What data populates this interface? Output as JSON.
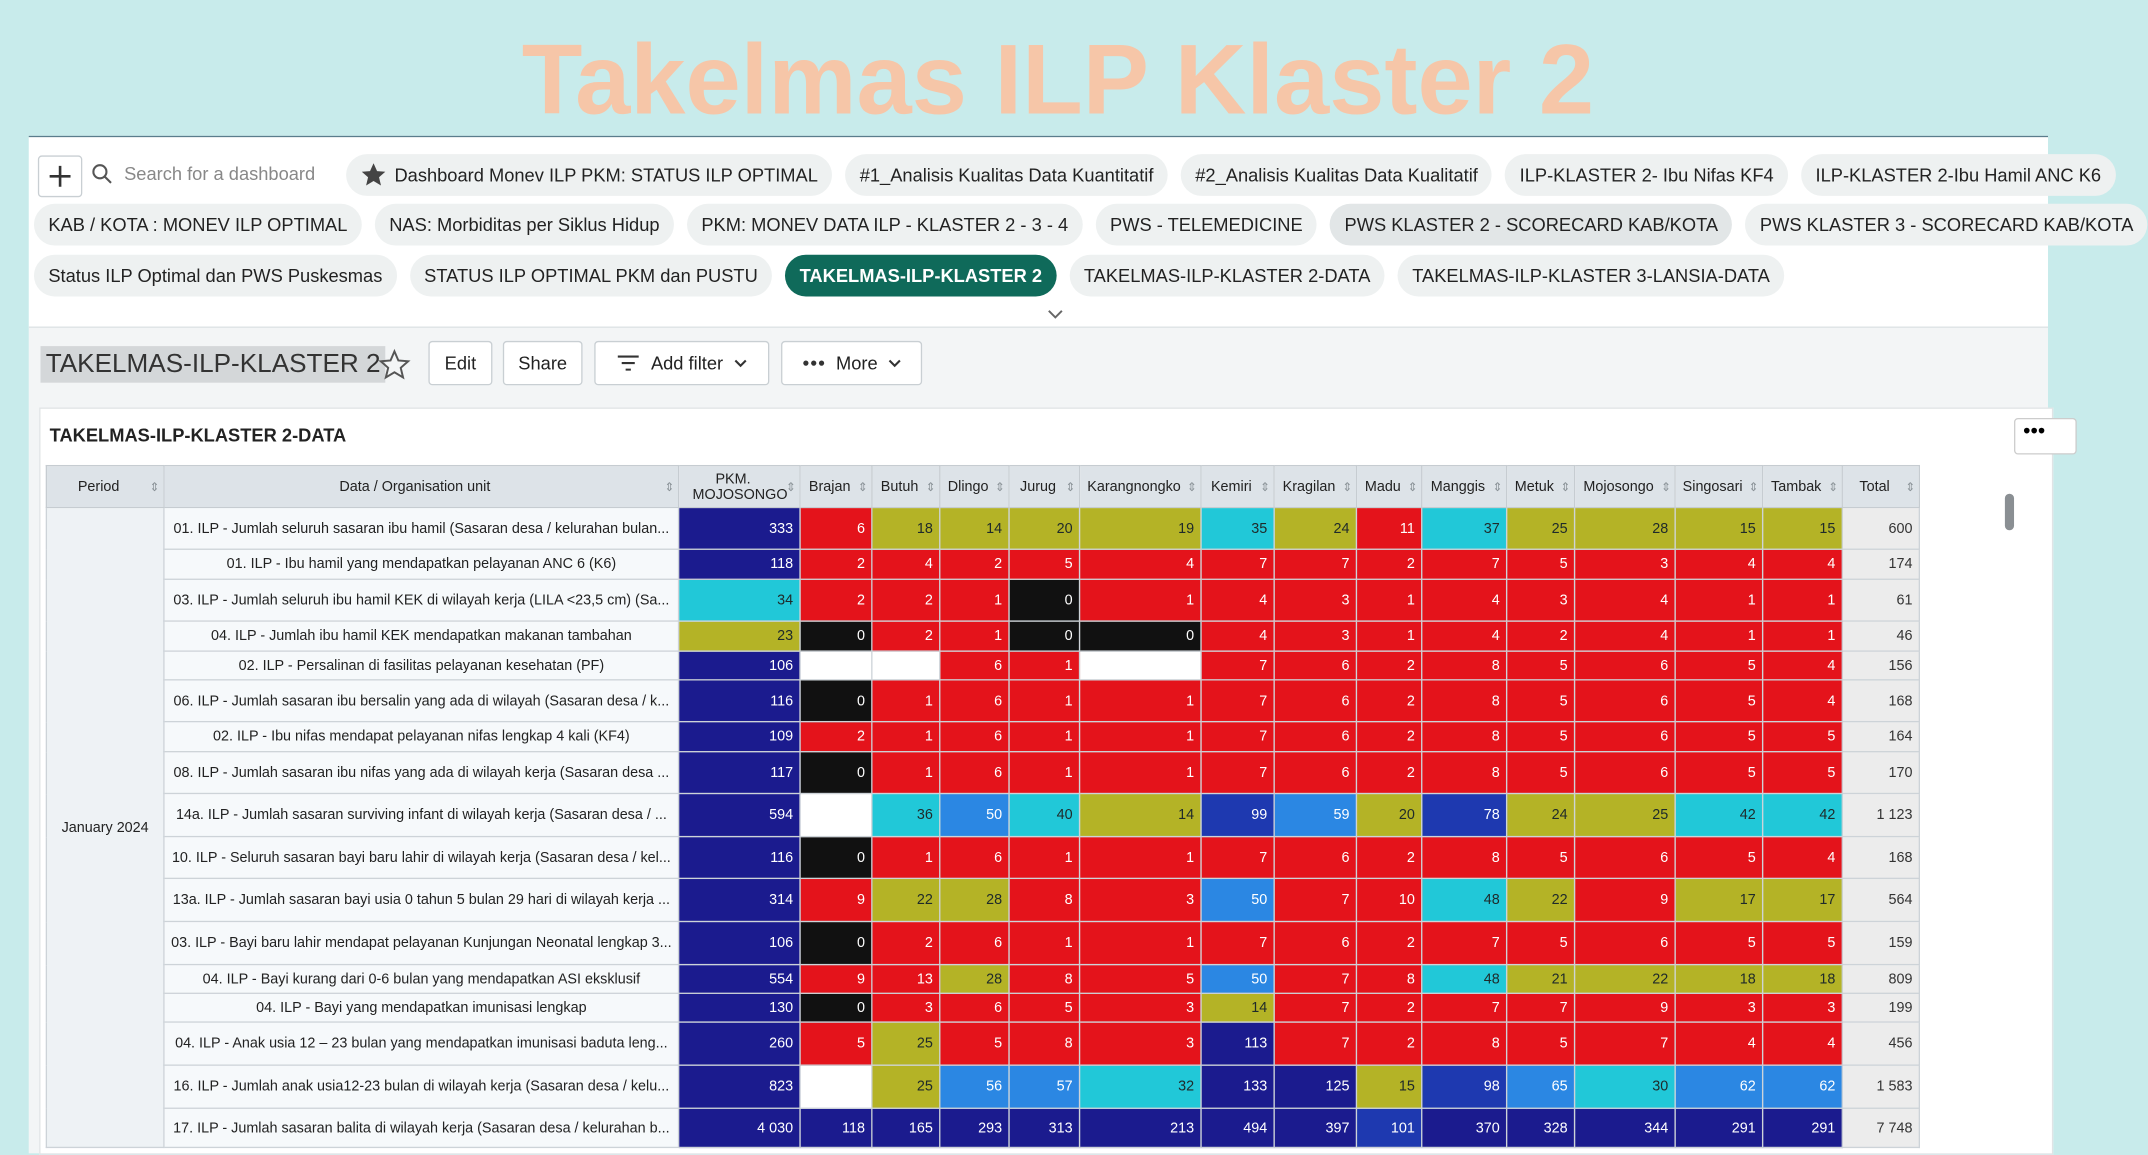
{
  "header": {
    "title": "Takelmas ILP Klaster 2"
  },
  "nav": {
    "search_placeholder": "Search for a dashboard",
    "dashboard_rows": [
      [
        {
          "label": "Dashboard Monev ILP PKM: STATUS ILP OPTIMAL",
          "starred": true
        },
        {
          "label": "#1_Analisis Kualitas Data Kuantitatif"
        },
        {
          "label": "#2_Analisis Kualitas Data Kualitatif"
        },
        {
          "label": "ILP-KLASTER 2- Ibu Nifas KF4"
        },
        {
          "label": "ILP-KLASTER 2-Ibu Hamil ANC K6"
        }
      ],
      [
        {
          "label": "KAB / KOTA : MONEV ILP OPTIMAL"
        },
        {
          "label": "NAS: Morbiditas per Siklus Hidup"
        },
        {
          "label": "PKM: MONEV DATA ILP - KLASTER 2 - 3 - 4"
        },
        {
          "label": "PWS - TELEMEDICINE"
        },
        {
          "label": "PWS KLASTER 2 - SCORECARD KAB/KOTA",
          "hovered": true
        },
        {
          "label": "PWS KLASTER 3 - SCORECARD KAB/KOTA"
        }
      ],
      [
        {
          "label": "Status ILP Optimal dan PWS Puskesmas"
        },
        {
          "label": "STATUS ILP OPTIMAL PKM dan PUSTU"
        },
        {
          "label": "TAKELMAS-ILP-KLASTER 2",
          "active": true
        },
        {
          "label": "TAKELMAS-ILP-KLASTER 2-DATA"
        },
        {
          "label": "TAKELMAS-ILP-KLASTER 3-LANSIA-DATA"
        }
      ]
    ]
  },
  "toolbar": {
    "title": "TAKELMAS-ILP-KLASTER 2",
    "buttons": [
      "Edit",
      "Share",
      "Add filter",
      "More"
    ]
  },
  "table": {
    "title": "TAKELMAS-ILP-KLASTER 2-DATA",
    "columns": [
      "Period",
      "Data / Organisation unit",
      "PKM. MOJOSONGO",
      "Brajan",
      "Butuh",
      "Dlingo",
      "Jurug",
      "Karangnongko",
      "Kemiri",
      "Kragilan",
      "Madu",
      "Manggis",
      "Metuk",
      "Mojosongo",
      "Singosari",
      "Tambak",
      "Total"
    ],
    "period": "January 2024",
    "rows": [
      {
        "label": "01. ILP - Jumlah seluruh sasaran ibu hamil (Sasaran desa / kelurahan bulan...",
        "cells": [
          333,
          6,
          18,
          14,
          20,
          19,
          35,
          24,
          11,
          37,
          25,
          28,
          15,
          15,
          600
        ],
        "colors": [
          "#1b1b8e",
          "#e4131b",
          "#b4b326",
          "#b4b326",
          "#b4b326",
          "#b4b326",
          "#21c8d8",
          "#b4b326",
          "#e4131b",
          "#21c8d8",
          "#b4b326",
          "#b4b326",
          "#b4b326",
          "#b4b326"
        ]
      },
      {
        "label": "01. ILP - Ibu hamil yang mendapatkan pelayanan ANC 6 (K6)",
        "cells": [
          118,
          2,
          4,
          2,
          5,
          4,
          7,
          7,
          2,
          7,
          5,
          3,
          4,
          4,
          174
        ],
        "colors": [
          "#1b1b8e",
          "#e4131b",
          "#e4131b",
          "#e4131b",
          "#e4131b",
          "#e4131b",
          "#e4131b",
          "#e4131b",
          "#e4131b",
          "#e4131b",
          "#e4131b",
          "#e4131b",
          "#e4131b",
          "#e4131b"
        ]
      },
      {
        "label": "03. ILP - Jumlah seluruh ibu hamil KEK di wilayah kerja (LILA <23,5 cm) (Sa...",
        "cells": [
          34,
          2,
          2,
          1,
          0,
          1,
          4,
          3,
          1,
          4,
          3,
          4,
          1,
          1,
          61
        ],
        "colors": [
          "#21c8d8",
          "#e4131b",
          "#e4131b",
          "#e4131b",
          "#111111",
          "#e4131b",
          "#e4131b",
          "#e4131b",
          "#e4131b",
          "#e4131b",
          "#e4131b",
          "#e4131b",
          "#e4131b",
          "#e4131b"
        ]
      },
      {
        "label": "04. ILP - Jumlah ibu hamil KEK mendapatkan makanan tambahan",
        "cells": [
          23,
          0,
          2,
          1,
          0,
          0,
          4,
          3,
          1,
          4,
          2,
          4,
          1,
          1,
          46
        ],
        "colors": [
          "#b4b326",
          "#111111",
          "#e4131b",
          "#e4131b",
          "#111111",
          "#111111",
          "#e4131b",
          "#e4131b",
          "#e4131b",
          "#e4131b",
          "#e4131b",
          "#e4131b",
          "#e4131b",
          "#e4131b"
        ]
      },
      {
        "label": "02. ILP - Persalinan di fasilitas pelayanan kesehatan (PF)",
        "cells": [
          106,
          null,
          null,
          6,
          1,
          null,
          7,
          6,
          2,
          8,
          5,
          6,
          5,
          4,
          156
        ],
        "colors": [
          "#1b1b8e",
          "#ffffff",
          "#ffffff",
          "#e4131b",
          "#e4131b",
          "#ffffff",
          "#e4131b",
          "#e4131b",
          "#e4131b",
          "#e4131b",
          "#e4131b",
          "#e4131b",
          "#e4131b",
          "#e4131b"
        ]
      },
      {
        "label": "06. ILP - Jumlah sasaran ibu bersalin yang ada di wilayah (Sasaran desa / k...",
        "cells": [
          116,
          0,
          1,
          6,
          1,
          1,
          7,
          6,
          2,
          8,
          5,
          6,
          5,
          4,
          168
        ],
        "colors": [
          "#1b1b8e",
          "#111111",
          "#e4131b",
          "#e4131b",
          "#e4131b",
          "#e4131b",
          "#e4131b",
          "#e4131b",
          "#e4131b",
          "#e4131b",
          "#e4131b",
          "#e4131b",
          "#e4131b",
          "#e4131b"
        ]
      },
      {
        "label": "02. ILP - Ibu nifas mendapat pelayanan nifas lengkap 4 kali (KF4)",
        "cells": [
          109,
          2,
          1,
          6,
          1,
          1,
          7,
          6,
          2,
          8,
          5,
          6,
          5,
          5,
          164
        ],
        "colors": [
          "#1b1b8e",
          "#e4131b",
          "#e4131b",
          "#e4131b",
          "#e4131b",
          "#e4131b",
          "#e4131b",
          "#e4131b",
          "#e4131b",
          "#e4131b",
          "#e4131b",
          "#e4131b",
          "#e4131b",
          "#e4131b"
        ]
      },
      {
        "label": "08. ILP - Jumlah sasaran ibu nifas yang ada di wilayah kerja (Sasaran desa ...",
        "cells": [
          117,
          0,
          1,
          6,
          1,
          1,
          7,
          6,
          2,
          8,
          5,
          6,
          5,
          5,
          170
        ],
        "colors": [
          "#1b1b8e",
          "#111111",
          "#e4131b",
          "#e4131b",
          "#e4131b",
          "#e4131b",
          "#e4131b",
          "#e4131b",
          "#e4131b",
          "#e4131b",
          "#e4131b",
          "#e4131b",
          "#e4131b",
          "#e4131b"
        ]
      },
      {
        "label": "14a. ILP - Jumlah sasaran surviving infant di wilayah kerja (Sasaran desa / ...",
        "cells": [
          594,
          null,
          36,
          50,
          40,
          14,
          99,
          59,
          20,
          78,
          24,
          25,
          42,
          42,
          "1 123"
        ],
        "colors": [
          "#1b1b8e",
          "#ffffff",
          "#21c8d8",
          "#2b87e3",
          "#21c8d8",
          "#b4b326",
          "#1e39b0",
          "#2b87e3",
          "#b4b326",
          "#1e39b0",
          "#b4b326",
          "#b4b326",
          "#21c8d8",
          "#21c8d8"
        ]
      },
      {
        "label": "10. ILP - Seluruh sasaran bayi baru lahir di wilayah kerja (Sasaran desa / kel...",
        "cells": [
          116,
          0,
          1,
          6,
          1,
          1,
          7,
          6,
          2,
          8,
          5,
          6,
          5,
          4,
          168
        ],
        "colors": [
          "#1b1b8e",
          "#111111",
          "#e4131b",
          "#e4131b",
          "#e4131b",
          "#e4131b",
          "#e4131b",
          "#e4131b",
          "#e4131b",
          "#e4131b",
          "#e4131b",
          "#e4131b",
          "#e4131b",
          "#e4131b"
        ]
      },
      {
        "label": "13a. ILP - Jumlah sasaran bayi usia 0 tahun 5 bulan 29 hari di wilayah kerja ...",
        "cells": [
          314,
          9,
          22,
          28,
          8,
          3,
          50,
          7,
          10,
          48,
          22,
          9,
          17,
          17,
          564
        ],
        "colors": [
          "#1b1b8e",
          "#e4131b",
          "#b4b326",
          "#b4b326",
          "#e4131b",
          "#e4131b",
          "#2b87e3",
          "#e4131b",
          "#e4131b",
          "#21c8d8",
          "#b4b326",
          "#e4131b",
          "#b4b326",
          "#b4b326"
        ]
      },
      {
        "label": "03. ILP - Bayi baru lahir mendapat pelayanan Kunjungan Neonatal lengkap 3...",
        "cells": [
          106,
          0,
          2,
          6,
          1,
          1,
          7,
          6,
          2,
          7,
          5,
          6,
          5,
          5,
          159
        ],
        "colors": [
          "#1b1b8e",
          "#111111",
          "#e4131b",
          "#e4131b",
          "#e4131b",
          "#e4131b",
          "#e4131b",
          "#e4131b",
          "#e4131b",
          "#e4131b",
          "#e4131b",
          "#e4131b",
          "#e4131b",
          "#e4131b"
        ]
      },
      {
        "label": "04. ILP - Bayi kurang dari 0-6 bulan yang mendapatkan ASI eksklusif",
        "cells": [
          554,
          9,
          13,
          28,
          8,
          5,
          50,
          7,
          8,
          48,
          21,
          22,
          18,
          18,
          809
        ],
        "colors": [
          "#1b1b8e",
          "#e4131b",
          "#e4131b",
          "#b4b326",
          "#e4131b",
          "#e4131b",
          "#2b87e3",
          "#e4131b",
          "#e4131b",
          "#21c8d8",
          "#b4b326",
          "#b4b326",
          "#b4b326",
          "#b4b326"
        ]
      },
      {
        "label": "04. ILP - Bayi yang mendapatkan imunisasi lengkap",
        "cells": [
          130,
          0,
          3,
          6,
          5,
          3,
          14,
          7,
          2,
          7,
          7,
          9,
          3,
          3,
          199
        ],
        "colors": [
          "#1b1b8e",
          "#111111",
          "#e4131b",
          "#e4131b",
          "#e4131b",
          "#e4131b",
          "#b4b326",
          "#e4131b",
          "#e4131b",
          "#e4131b",
          "#e4131b",
          "#e4131b",
          "#e4131b",
          "#e4131b"
        ]
      },
      {
        "label": "04. ILP - Anak usia 12 – 23 bulan yang mendapatkan imunisasi baduta leng...",
        "cells": [
          260,
          5,
          25,
          5,
          8,
          3,
          113,
          7,
          2,
          8,
          5,
          7,
          4,
          4,
          456
        ],
        "colors": [
          "#1b1b8e",
          "#e4131b",
          "#b4b326",
          "#e4131b",
          "#e4131b",
          "#e4131b",
          "#1b1b8e",
          "#e4131b",
          "#e4131b",
          "#e4131b",
          "#e4131b",
          "#e4131b",
          "#e4131b",
          "#e4131b"
        ]
      },
      {
        "label": "16. ILP - Jumlah anak usia12-23 bulan di wilayah kerja (Sasaran desa / kelu...",
        "cells": [
          823,
          null,
          25,
          56,
          57,
          32,
          133,
          125,
          15,
          98,
          65,
          30,
          62,
          62,
          "1 583"
        ],
        "colors": [
          "#1b1b8e",
          "#ffffff",
          "#b4b326",
          "#2b87e3",
          "#2b87e3",
          "#21c8d8",
          "#1b1b8e",
          "#1b1b8e",
          "#b4b326",
          "#1e39b0",
          "#2b87e3",
          "#21c8d8",
          "#2b87e3",
          "#2b87e3"
        ]
      },
      {
        "label": "17. ILP - Jumlah sasaran balita di wilayah kerja (Sasaran desa / kelurahan b...",
        "cells": [
          "4 030",
          118,
          165,
          293,
          313,
          213,
          494,
          397,
          101,
          370,
          328,
          344,
          291,
          291,
          "7 748"
        ],
        "colors": [
          "#1b1b8e",
          "#1b1b8e",
          "#1b1b8e",
          "#1b1b8e",
          "#1b1b8e",
          "#1b1b8e",
          "#1b1b8e",
          "#1b1b8e",
          "#1e39b0",
          "#1b1b8e",
          "#1b1b8e",
          "#1b1b8e",
          "#1b1b8e",
          "#1b1b8e"
        ]
      }
    ]
  }
}
